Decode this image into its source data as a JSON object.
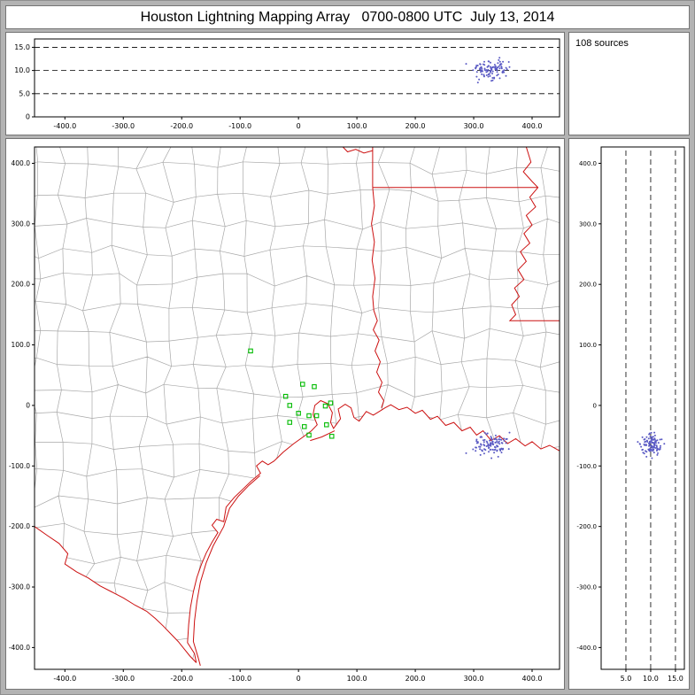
{
  "window": {
    "title": "Houston Lightning Mapping Array   0700-0800 UTC  July 13, 2014"
  },
  "info_panel": {
    "text": "108 sources",
    "count": 108
  },
  "colors": {
    "frame_background": "#b3b3b3",
    "panel_background": "#ffffff",
    "panel_border": "#747474",
    "axis": "#000000",
    "county_line": "#a8a8a8",
    "state_border": "#cc1111",
    "station_marker": "#00bb00",
    "source_point": "#5a5ac4"
  },
  "sources": {
    "count": 108,
    "east_center_km": 330,
    "east_spread_km": 13,
    "north_center_km": -66,
    "north_spread_km": 9,
    "alt_center_km": 10.2,
    "alt_spread_km": 1.1
  },
  "stations_km": [
    [
      -82,
      90
    ],
    [
      7,
      35
    ],
    [
      27,
      31
    ],
    [
      -22,
      15
    ],
    [
      -15,
      0
    ],
    [
      46,
      -1
    ],
    [
      55,
      4
    ],
    [
      0,
      -13
    ],
    [
      18,
      -17
    ],
    [
      31,
      -17
    ],
    [
      -15,
      -28
    ],
    [
      10,
      -35
    ],
    [
      48,
      -32
    ],
    [
      18,
      -49
    ],
    [
      57,
      -51
    ]
  ],
  "chart_data": [
    {
      "id": "altitude_vs_east",
      "type": "scatter",
      "xlim": [
        -452,
        447
      ],
      "ylim": [
        0,
        16.8
      ],
      "x_ticks": [
        -400,
        -300,
        -200,
        -100,
        0,
        100,
        200,
        300,
        400
      ],
      "x_tick_labels": [
        "-400.0",
        "-300.0",
        "-200.0",
        "-100.0",
        "0",
        "100.0",
        "200.0",
        "300.0",
        "400.0"
      ],
      "y_ticks": [
        0,
        5,
        10,
        15
      ],
      "y_tick_labels": [
        "0",
        "5.0",
        "10.0",
        "15.0"
      ],
      "dashed_y": [
        5,
        10,
        15
      ],
      "series_note": "108 lightning sources: altitude (km) vs east-west distance (km), cluster near x=+330 km at 8-12 km altitude"
    },
    {
      "id": "plan_view_map",
      "type": "scatter",
      "xlim": [
        -452,
        447
      ],
      "ylim": [
        -436,
        427
      ],
      "x_ticks": [
        -400,
        -300,
        -200,
        -100,
        0,
        100,
        200,
        300,
        400
      ],
      "x_tick_labels": [
        "-400.0",
        "-300.0",
        "-200.0",
        "-100.0",
        "0",
        "100.0",
        "200.0",
        "300.0",
        "400.0"
      ],
      "y_ticks": [
        400,
        300,
        200,
        100,
        0,
        -100,
        -200,
        -300,
        -400
      ],
      "y_tick_labels": [
        "400.0",
        "300.0",
        "200.0",
        "100.0",
        "0",
        "-100.0",
        "-200.0",
        "-300.0",
        "-400.0"
      ],
      "series_note": "plan view centered on Houston: 108 lightning sources near (+330,-66) km, green LMA station squares near origin, gray county lines, red state borders and Gulf coastline"
    },
    {
      "id": "altitude_vs_north",
      "type": "scatter",
      "xlim": [
        0,
        16.8
      ],
      "ylim": [
        -436,
        427
      ],
      "x_ticks": [
        5,
        10,
        15
      ],
      "x_tick_labels": [
        "5.0",
        "10.0",
        "15.0"
      ],
      "y_ticks": [
        400,
        300,
        200,
        100,
        0,
        -100,
        -200,
        -300,
        -400
      ],
      "y_tick_labels": [
        "400.0",
        "300.0",
        "200.0",
        "100.0",
        "0",
        "-100.0",
        "-200.0",
        "-300.0",
        "-400.0"
      ],
      "dashed_x": [
        5,
        10,
        15
      ],
      "series_note": "altitude (km) vs north-south distance (km), cluster near y=-66 km at 8-12 km altitude"
    }
  ],
  "map": {
    "coast": [
      [
        447,
        -75
      ],
      [
        430,
        -66
      ],
      [
        415,
        -72
      ],
      [
        400,
        -60
      ],
      [
        388,
        -67
      ],
      [
        372,
        -55
      ],
      [
        358,
        -63
      ],
      [
        344,
        -50
      ],
      [
        330,
        -58
      ],
      [
        316,
        -42
      ],
      [
        305,
        -49
      ],
      [
        294,
        -36
      ],
      [
        280,
        -42
      ],
      [
        266,
        -28
      ],
      [
        252,
        -33
      ],
      [
        238,
        -18
      ],
      [
        226,
        -23
      ],
      [
        212,
        -8
      ],
      [
        200,
        -13
      ],
      [
        186,
        -3
      ],
      [
        172,
        -7
      ],
      [
        158,
        1
      ],
      [
        148,
        -4
      ],
      [
        140,
        -9
      ],
      [
        128,
        -16
      ],
      [
        116,
        -10
      ],
      [
        104,
        -26
      ],
      [
        95,
        -20
      ],
      [
        90,
        -4
      ],
      [
        80,
        2
      ],
      [
        68,
        -6
      ],
      [
        72,
        -22
      ],
      [
        60,
        -38
      ],
      [
        55,
        -28
      ],
      [
        58,
        -12
      ],
      [
        50,
        3
      ],
      [
        38,
        8
      ],
      [
        28,
        0
      ],
      [
        25,
        -15
      ],
      [
        32,
        -32
      ],
      [
        22,
        -42
      ],
      [
        8,
        -52
      ],
      [
        -8,
        -63
      ],
      [
        -26,
        -77
      ],
      [
        -42,
        -92
      ],
      [
        -52,
        -98
      ],
      [
        -62,
        -92
      ],
      [
        -72,
        -100
      ],
      [
        -65,
        -112
      ],
      [
        -80,
        -124
      ],
      [
        -95,
        -138
      ],
      [
        -110,
        -152
      ],
      [
        -124,
        -168
      ],
      [
        -128,
        -192
      ],
      [
        -140,
        -188
      ],
      [
        -148,
        -198
      ],
      [
        -138,
        -210
      ],
      [
        -148,
        -226
      ],
      [
        -158,
        -244
      ],
      [
        -166,
        -262
      ],
      [
        -174,
        -284
      ],
      [
        -180,
        -308
      ],
      [
        -185,
        -334
      ],
      [
        -188,
        -362
      ],
      [
        -190,
        -392
      ],
      [
        -178,
        -410
      ],
      [
        -175,
        -425
      ]
    ],
    "galveston_island": [
      [
        62,
        -42
      ],
      [
        40,
        -52
      ],
      [
        20,
        -58
      ]
    ],
    "padre_island": [
      [
        -66,
        -116
      ],
      [
        -85,
        -132
      ],
      [
        -103,
        -150
      ],
      [
        -118,
        -170
      ],
      [
        -128,
        -200
      ],
      [
        -146,
        -232
      ],
      [
        -158,
        -260
      ],
      [
        -168,
        -292
      ],
      [
        -174,
        -324
      ],
      [
        -178,
        -356
      ],
      [
        -180,
        -390
      ],
      [
        -172,
        -416
      ],
      [
        -168,
        -430
      ]
    ],
    "rio_grande": [
      [
        -452,
        -200
      ],
      [
        -430,
        -215
      ],
      [
        -410,
        -228
      ],
      [
        -395,
        -245
      ],
      [
        -400,
        -262
      ],
      [
        -380,
        -275
      ],
      [
        -360,
        -285
      ],
      [
        -340,
        -298
      ],
      [
        -320,
        -308
      ],
      [
        -300,
        -318
      ],
      [
        -280,
        -330
      ],
      [
        -260,
        -340
      ],
      [
        -245,
        -352
      ],
      [
        -232,
        -364
      ],
      [
        -220,
        -376
      ],
      [
        -206,
        -390
      ],
      [
        -196,
        -402
      ],
      [
        -186,
        -414
      ],
      [
        -175,
        -425
      ]
    ],
    "state_borders": [
      [
        [
          127,
          427
        ],
        [
          127,
          360
        ]
      ],
      [
        [
          127,
          421
        ],
        [
          112,
          417
        ],
        [
          98,
          423
        ],
        [
          84,
          419
        ],
        [
          76,
          427
        ]
      ],
      [
        [
          127,
          360
        ],
        [
          410,
          360
        ]
      ],
      [
        [
          127,
          360
        ],
        [
          130,
          330
        ],
        [
          125,
          300
        ],
        [
          130,
          270
        ],
        [
          126,
          240
        ],
        [
          131,
          210
        ],
        [
          127,
          180
        ],
        [
          129,
          157
        ],
        [
          135,
          140
        ],
        [
          128,
          125
        ],
        [
          138,
          108
        ],
        [
          131,
          90
        ],
        [
          140,
          72
        ],
        [
          134,
          55
        ],
        [
          143,
          38
        ],
        [
          137,
          22
        ],
        [
          146,
          8
        ],
        [
          142,
          -4
        ]
      ],
      [
        [
          390,
          427
        ],
        [
          398,
          402
        ],
        [
          385,
          386
        ],
        [
          400,
          370
        ],
        [
          410,
          360
        ],
        [
          396,
          344
        ],
        [
          406,
          328
        ],
        [
          390,
          314
        ],
        [
          400,
          298
        ],
        [
          386,
          284
        ],
        [
          396,
          268
        ],
        [
          380,
          254
        ],
        [
          390,
          238
        ],
        [
          376,
          224
        ],
        [
          386,
          208
        ],
        [
          370,
          194
        ],
        [
          378,
          180
        ],
        [
          365,
          166
        ],
        [
          372,
          150
        ],
        [
          362,
          140
        ],
        [
          447,
          140
        ]
      ]
    ],
    "county_grid": {
      "spacing_km": 46,
      "jitter_km": 11
    }
  }
}
